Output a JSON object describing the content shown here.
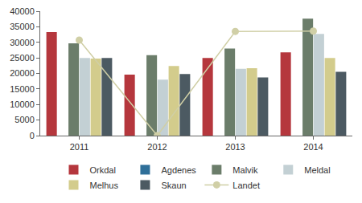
{
  "chart_data": {
    "type": "bar",
    "categories": [
      "2011",
      "2012",
      "2013",
      "2014"
    ],
    "series": [
      {
        "name": "Orkdal",
        "color": "#b5373d",
        "values": [
          33300,
          19600,
          25000,
          26800
        ]
      },
      {
        "name": "Agdenes",
        "color": "#2f6f99",
        "values": [
          null,
          null,
          null,
          null
        ]
      },
      {
        "name": "Malvik",
        "color": "#6b7d6a",
        "values": [
          29700,
          25900,
          28000,
          37600
        ]
      },
      {
        "name": "Meldal",
        "color": "#c3d0d4",
        "values": [
          25000,
          18000,
          21500,
          32700
        ]
      },
      {
        "name": "Melhus",
        "color": "#d3cc8c",
        "values": [
          24800,
          22400,
          21700,
          25000
        ]
      },
      {
        "name": "Skaun",
        "color": "#4c5a62",
        "values": [
          25000,
          19800,
          18700,
          20500
        ]
      },
      {
        "name": "Landet",
        "color": "#d0cfa6",
        "type": "line",
        "marker": "circle",
        "values": [
          30700,
          0,
          33500,
          33600
        ]
      }
    ],
    "ylim": [
      0,
      40000
    ],
    "yticks": [
      0,
      5000,
      10000,
      15000,
      20000,
      25000,
      30000,
      35000,
      40000
    ],
    "grid": false,
    "legend": "bottom"
  }
}
